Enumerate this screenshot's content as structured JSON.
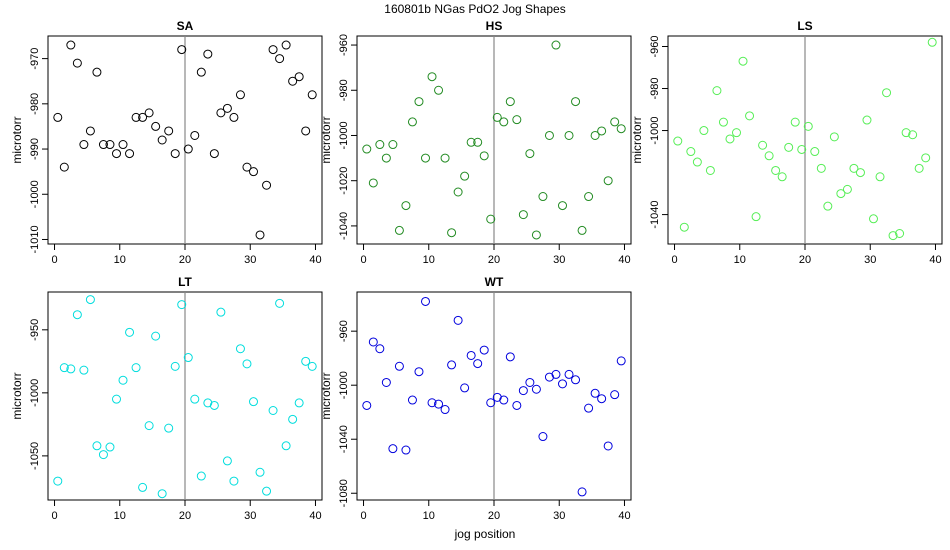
{
  "title": "160801b   NGas PdO2 Jog Shapes",
  "xlabel": "jog position",
  "ylabel": "microtorr",
  "chart_data": [
    {
      "type": "scatter",
      "title": "SA",
      "color": "#000000",
      "xlim": [
        -1,
        41
      ],
      "ylim": [
        -1011,
        -965
      ],
      "vline": 20,
      "xticks": [
        0,
        10,
        20,
        30,
        40
      ],
      "yticks": [
        -1010,
        -1000,
        -990,
        -980,
        -970
      ],
      "points": [
        [
          0.5,
          -983
        ],
        [
          1.5,
          -994
        ],
        [
          2.5,
          -967
        ],
        [
          3.5,
          -971
        ],
        [
          4.5,
          -989
        ],
        [
          5.5,
          -986
        ],
        [
          6.5,
          -973
        ],
        [
          7.5,
          -989
        ],
        [
          8.5,
          -989
        ],
        [
          9.5,
          -991
        ],
        [
          10.5,
          -989
        ],
        [
          11.5,
          -991
        ],
        [
          12.5,
          -983
        ],
        [
          13.5,
          -983
        ],
        [
          14.5,
          -982
        ],
        [
          15.5,
          -985
        ],
        [
          16.5,
          -988
        ],
        [
          17.5,
          -986
        ],
        [
          18.5,
          -991
        ],
        [
          19.5,
          -968
        ],
        [
          20.5,
          -990
        ],
        [
          21.5,
          -987
        ],
        [
          22.5,
          -973
        ],
        [
          23.5,
          -969
        ],
        [
          24.5,
          -991
        ],
        [
          25.5,
          -982
        ],
        [
          26.5,
          -981
        ],
        [
          27.5,
          -983
        ],
        [
          28.5,
          -978
        ],
        [
          29.5,
          -994
        ],
        [
          30.5,
          -995
        ],
        [
          31.5,
          -1009
        ],
        [
          32.5,
          -998
        ],
        [
          33.5,
          -968
        ],
        [
          34.5,
          -970
        ],
        [
          35.5,
          -967
        ],
        [
          36.5,
          -975
        ],
        [
          37.5,
          -974
        ],
        [
          38.5,
          -986
        ],
        [
          39.5,
          -978
        ]
      ]
    },
    {
      "type": "scatter",
      "title": "HS",
      "color": "#228B22",
      "xlim": [
        -1,
        41
      ],
      "ylim": [
        -1048,
        -956
      ],
      "vline": 20,
      "xticks": [
        0,
        10,
        20,
        30,
        40
      ],
      "yticks": [
        -1040,
        -1020,
        -1000,
        -980,
        -960
      ],
      "points": [
        [
          0.5,
          -1006
        ],
        [
          1.5,
          -1021
        ],
        [
          2.5,
          -1004
        ],
        [
          3.5,
          -1010
        ],
        [
          4.5,
          -1004
        ],
        [
          5.5,
          -1042
        ],
        [
          6.5,
          -1031
        ],
        [
          7.5,
          -994
        ],
        [
          8.5,
          -985
        ],
        [
          9.5,
          -1010
        ],
        [
          10.5,
          -974
        ],
        [
          11.5,
          -980
        ],
        [
          12.5,
          -1010
        ],
        [
          13.5,
          -1043
        ],
        [
          14.5,
          -1025
        ],
        [
          15.5,
          -1018
        ],
        [
          16.5,
          -1003
        ],
        [
          17.5,
          -1003
        ],
        [
          18.5,
          -1009
        ],
        [
          19.5,
          -1037
        ],
        [
          20.5,
          -992
        ],
        [
          21.5,
          -994
        ],
        [
          22.5,
          -985
        ],
        [
          23.5,
          -993
        ],
        [
          24.5,
          -1035
        ],
        [
          25.5,
          -1008
        ],
        [
          26.5,
          -1044
        ],
        [
          27.5,
          -1027
        ],
        [
          28.5,
          -1000
        ],
        [
          29.5,
          -960
        ],
        [
          30.5,
          -1031
        ],
        [
          31.5,
          -1000
        ],
        [
          32.5,
          -985
        ],
        [
          33.5,
          -1042
        ],
        [
          34.5,
          -1027
        ],
        [
          35.5,
          -1000
        ],
        [
          36.5,
          -998
        ],
        [
          37.5,
          -1020
        ],
        [
          38.5,
          -994
        ],
        [
          39.5,
          -997
        ]
      ]
    },
    {
      "type": "scatter",
      "title": "LS",
      "color": "#55EE55",
      "xlim": [
        -1,
        41
      ],
      "ylim": [
        -1054,
        -955
      ],
      "vline": 20,
      "xticks": [
        0,
        10,
        20,
        30,
        40
      ],
      "yticks": [
        -1040,
        -1000,
        -980,
        -960
      ],
      "points": [
        [
          0.5,
          -1005
        ],
        [
          1.5,
          -1046
        ],
        [
          2.5,
          -1010
        ],
        [
          3.5,
          -1015
        ],
        [
          4.5,
          -1000
        ],
        [
          5.5,
          -1019
        ],
        [
          6.5,
          -981
        ],
        [
          7.5,
          -996
        ],
        [
          8.5,
          -1004
        ],
        [
          9.5,
          -1001
        ],
        [
          10.5,
          -967
        ],
        [
          11.5,
          -993
        ],
        [
          12.5,
          -1041
        ],
        [
          13.5,
          -1007
        ],
        [
          14.5,
          -1012
        ],
        [
          15.5,
          -1019
        ],
        [
          16.5,
          -1022
        ],
        [
          17.5,
          -1008
        ],
        [
          18.5,
          -996
        ],
        [
          19.5,
          -1009
        ],
        [
          20.5,
          -998
        ],
        [
          21.5,
          -1010
        ],
        [
          22.5,
          -1018
        ],
        [
          23.5,
          -1036
        ],
        [
          24.5,
          -1003
        ],
        [
          25.5,
          -1030
        ],
        [
          26.5,
          -1028
        ],
        [
          27.5,
          -1018
        ],
        [
          28.5,
          -1020
        ],
        [
          29.5,
          -995
        ],
        [
          30.5,
          -1042
        ],
        [
          31.5,
          -1022
        ],
        [
          32.5,
          -982
        ],
        [
          33.5,
          -1050
        ],
        [
          34.5,
          -1049
        ],
        [
          35.5,
          -1001
        ],
        [
          36.5,
          -1002
        ],
        [
          37.5,
          -1018
        ],
        [
          38.5,
          -1013
        ],
        [
          39.5,
          -958
        ]
      ]
    },
    {
      "type": "scatter",
      "title": "LT",
      "color": "#00DDDD",
      "xlim": [
        -1,
        41
      ],
      "ylim": [
        -1085,
        -920
      ],
      "vline": 20,
      "xticks": [
        0,
        10,
        20,
        30,
        40
      ],
      "yticks": [
        -1050,
        -1000,
        -950
      ],
      "points": [
        [
          0.5,
          -1070
        ],
        [
          1.5,
          -980
        ],
        [
          2.5,
          -981
        ],
        [
          3.5,
          -938
        ],
        [
          4.5,
          -982
        ],
        [
          5.5,
          -926
        ],
        [
          6.5,
          -1042
        ],
        [
          7.5,
          -1049
        ],
        [
          8.5,
          -1043
        ],
        [
          9.5,
          -1005
        ],
        [
          10.5,
          -990
        ],
        [
          11.5,
          -952
        ],
        [
          12.5,
          -980
        ],
        [
          13.5,
          -1075
        ],
        [
          14.5,
          -1026
        ],
        [
          15.5,
          -955
        ],
        [
          16.5,
          -1080
        ],
        [
          17.5,
          -1028
        ],
        [
          18.5,
          -979
        ],
        [
          19.5,
          -930
        ],
        [
          20.5,
          -972
        ],
        [
          21.5,
          -1005
        ],
        [
          22.5,
          -1066
        ],
        [
          23.5,
          -1008
        ],
        [
          24.5,
          -1010
        ],
        [
          25.5,
          -936
        ],
        [
          26.5,
          -1054
        ],
        [
          27.5,
          -1070
        ],
        [
          28.5,
          -965
        ],
        [
          29.5,
          -977
        ],
        [
          30.5,
          -1007
        ],
        [
          31.5,
          -1063
        ],
        [
          32.5,
          -1078
        ],
        [
          33.5,
          -1014
        ],
        [
          34.5,
          -929
        ],
        [
          35.5,
          -1042
        ],
        [
          36.5,
          -1021
        ],
        [
          37.5,
          -1008
        ],
        [
          38.5,
          -975
        ],
        [
          39.5,
          -979
        ]
      ]
    },
    {
      "type": "scatter",
      "title": "WT",
      "color": "#0000DD",
      "xlim": [
        -1,
        41
      ],
      "ylim": [
        -1085,
        -931
      ],
      "vline": 20,
      "xticks": [
        0,
        10,
        20,
        30,
        40
      ],
      "yticks": [
        -1080,
        -1040,
        -1000,
        -960
      ],
      "points": [
        [
          0.5,
          -1015
        ],
        [
          1.5,
          -968
        ],
        [
          2.5,
          -973
        ],
        [
          3.5,
          -998
        ],
        [
          4.5,
          -1047
        ],
        [
          5.5,
          -986
        ],
        [
          6.5,
          -1048
        ],
        [
          7.5,
          -1011
        ],
        [
          8.5,
          -990
        ],
        [
          9.5,
          -938
        ],
        [
          10.5,
          -1013
        ],
        [
          11.5,
          -1014
        ],
        [
          12.5,
          -1018
        ],
        [
          13.5,
          -985
        ],
        [
          14.5,
          -952
        ],
        [
          15.5,
          -1002
        ],
        [
          16.5,
          -978
        ],
        [
          17.5,
          -984
        ],
        [
          18.5,
          -974
        ],
        [
          19.5,
          -1013
        ],
        [
          20.5,
          -1009
        ],
        [
          21.5,
          -1011
        ],
        [
          22.5,
          -979
        ],
        [
          23.5,
          -1015
        ],
        [
          24.5,
          -1004
        ],
        [
          25.5,
          -998
        ],
        [
          26.5,
          -1003
        ],
        [
          27.5,
          -1038
        ],
        [
          28.5,
          -994
        ],
        [
          29.5,
          -992
        ],
        [
          30.5,
          -999
        ],
        [
          31.5,
          -992
        ],
        [
          32.5,
          -996
        ],
        [
          33.5,
          -1079
        ],
        [
          34.5,
          -1017
        ],
        [
          35.5,
          -1006
        ],
        [
          36.5,
          -1010
        ],
        [
          37.5,
          -1045
        ],
        [
          38.5,
          -1007
        ],
        [
          39.5,
          -982
        ]
      ]
    }
  ]
}
